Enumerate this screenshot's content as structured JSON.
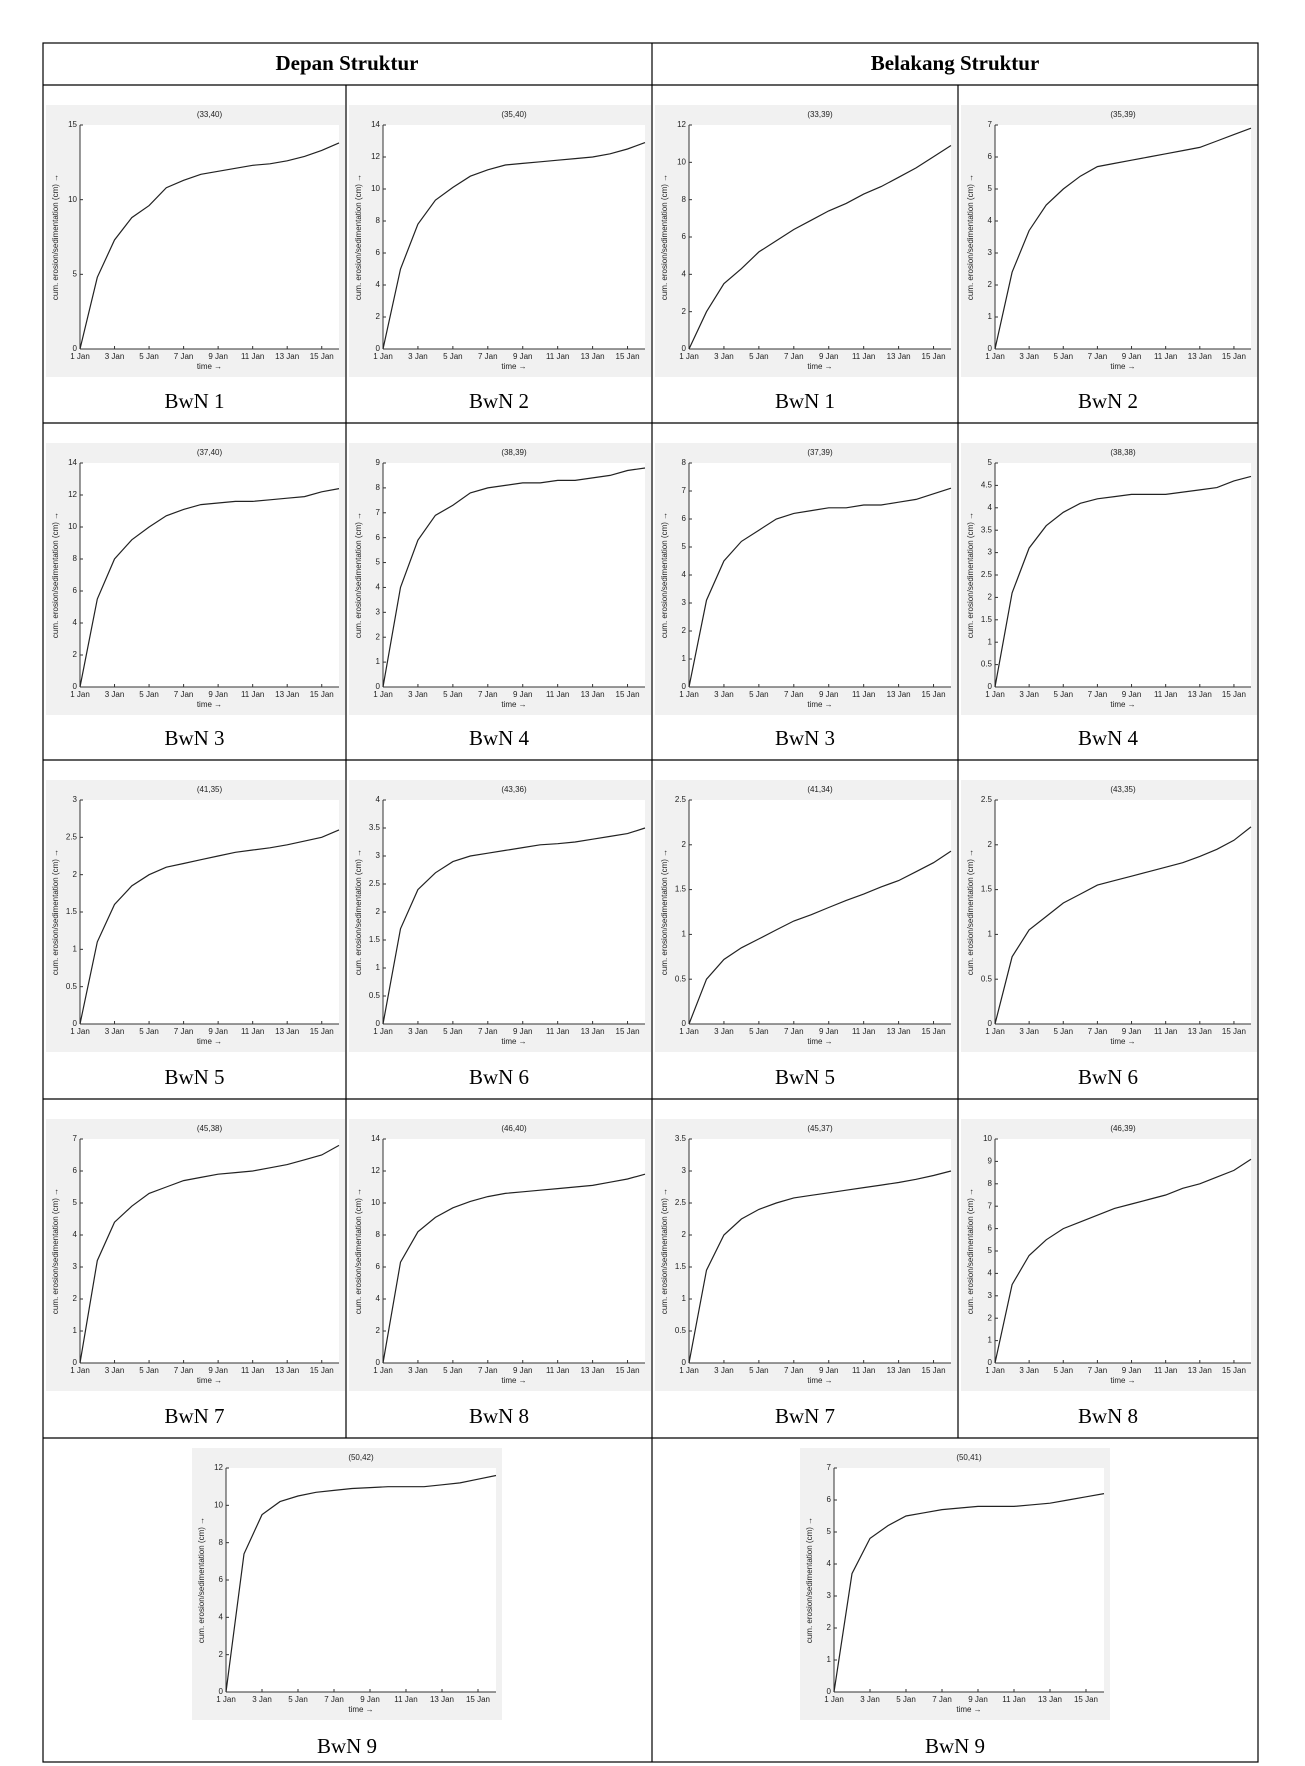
{
  "table": {
    "headers": [
      "Depan Struktur",
      "Belakang Struktur"
    ]
  },
  "chart_data": [
    {
      "type": "line",
      "title": "(33,40)",
      "caption": "BwN 1",
      "xlabel": "time →",
      "ylabel": "cum. erosion/sedimentation (cm) →",
      "x": [
        "1 Jan",
        "2 Jan",
        "3 Jan",
        "4 Jan",
        "5 Jan",
        "6 Jan",
        "7 Jan",
        "8 Jan",
        "9 Jan",
        "10 Jan",
        "11 Jan",
        "12 Jan",
        "13 Jan",
        "14 Jan",
        "15 Jan",
        "16 Jan"
      ],
      "xticks": [
        "1 Jan",
        "3 Jan",
        "5 Jan",
        "7 Jan",
        "9 Jan",
        "11 Jan",
        "13 Jan",
        "15 Jan"
      ],
      "values": [
        0,
        4.8,
        7.3,
        8.8,
        9.6,
        10.8,
        11.3,
        11.7,
        11.9,
        12.1,
        12.3,
        12.4,
        12.6,
        12.9,
        13.3,
        13.8
      ],
      "ylim": [
        0,
        15
      ],
      "yticks": [
        0,
        5,
        10,
        15
      ],
      "color": "#222222"
    },
    {
      "type": "line",
      "title": "(35,40)",
      "caption": "BwN 2",
      "xlabel": "time →",
      "ylabel": "cum. erosion/sedimentation (cm) →",
      "x": [
        "1 Jan",
        "2 Jan",
        "3 Jan",
        "4 Jan",
        "5 Jan",
        "6 Jan",
        "7 Jan",
        "8 Jan",
        "9 Jan",
        "10 Jan",
        "11 Jan",
        "12 Jan",
        "13 Jan",
        "14 Jan",
        "15 Jan",
        "16 Jan"
      ],
      "xticks": [
        "1 Jan",
        "3 Jan",
        "5 Jan",
        "7 Jan",
        "9 Jan",
        "11 Jan",
        "13 Jan",
        "15 Jan"
      ],
      "values": [
        0,
        5,
        7.8,
        9.3,
        10.1,
        10.8,
        11.2,
        11.5,
        11.6,
        11.7,
        11.8,
        11.9,
        12,
        12.2,
        12.5,
        12.9
      ],
      "ylim": [
        0,
        14
      ],
      "yticks": [
        0,
        2,
        4,
        6,
        8,
        10,
        12,
        14
      ],
      "color": "#222222"
    },
    {
      "type": "line",
      "title": "(33,39)",
      "caption": "BwN 1",
      "xlabel": "time →",
      "ylabel": "cum. erosion/sedimentation (cm) →",
      "x": [
        "1 Jan",
        "2 Jan",
        "3 Jan",
        "4 Jan",
        "5 Jan",
        "6 Jan",
        "7 Jan",
        "8 Jan",
        "9 Jan",
        "10 Jan",
        "11 Jan",
        "12 Jan",
        "13 Jan",
        "14 Jan",
        "15 Jan",
        "16 Jan"
      ],
      "xticks": [
        "1 Jan",
        "3 Jan",
        "5 Jan",
        "7 Jan",
        "9 Jan",
        "11 Jan",
        "13 Jan",
        "15 Jan"
      ],
      "values": [
        0,
        2,
        3.5,
        4.3,
        5.2,
        5.8,
        6.4,
        6.9,
        7.4,
        7.8,
        8.3,
        8.7,
        9.2,
        9.7,
        10.3,
        10.9
      ],
      "ylim": [
        0,
        12
      ],
      "yticks": [
        0,
        2,
        4,
        6,
        8,
        10,
        12
      ],
      "color": "#222222"
    },
    {
      "type": "line",
      "title": "(35,39)",
      "caption": "BwN 2",
      "xlabel": "time →",
      "ylabel": "cum. erosion/sedimentation (cm) →",
      "x": [
        "1 Jan",
        "2 Jan",
        "3 Jan",
        "4 Jan",
        "5 Jan",
        "6 Jan",
        "7 Jan",
        "8 Jan",
        "9 Jan",
        "10 Jan",
        "11 Jan",
        "12 Jan",
        "13 Jan",
        "14 Jan",
        "15 Jan",
        "16 Jan"
      ],
      "xticks": [
        "1 Jan",
        "3 Jan",
        "5 Jan",
        "7 Jan",
        "9 Jan",
        "11 Jan",
        "13 Jan",
        "15 Jan"
      ],
      "values": [
        0,
        2.4,
        3.7,
        4.5,
        5,
        5.4,
        5.7,
        5.8,
        5.9,
        6,
        6.1,
        6.2,
        6.3,
        6.5,
        6.7,
        6.9
      ],
      "ylim": [
        0,
        7
      ],
      "yticks": [
        0,
        1,
        2,
        3,
        4,
        5,
        6,
        7
      ],
      "color": "#222222"
    },
    {
      "type": "line",
      "title": "(37,40)",
      "caption": "BwN 3",
      "xlabel": "time →",
      "ylabel": "cum. erosion/sedimentation (cm) →",
      "x": [
        "1 Jan",
        "2 Jan",
        "3 Jan",
        "4 Jan",
        "5 Jan",
        "6 Jan",
        "7 Jan",
        "8 Jan",
        "9 Jan",
        "10 Jan",
        "11 Jan",
        "12 Jan",
        "13 Jan",
        "14 Jan",
        "15 Jan",
        "16 Jan"
      ],
      "xticks": [
        "1 Jan",
        "3 Jan",
        "5 Jan",
        "7 Jan",
        "9 Jan",
        "11 Jan",
        "13 Jan",
        "15 Jan"
      ],
      "values": [
        0,
        5.5,
        8,
        9.2,
        10,
        10.7,
        11.1,
        11.4,
        11.5,
        11.6,
        11.6,
        11.7,
        11.8,
        11.9,
        12.2,
        12.4
      ],
      "ylim": [
        0,
        14
      ],
      "yticks": [
        0,
        2,
        4,
        6,
        8,
        10,
        12,
        14
      ],
      "color": "#222222"
    },
    {
      "type": "line",
      "title": "(38,39)",
      "caption": "BwN 4",
      "xlabel": "time →",
      "ylabel": "cum. erosion/sedimentation (cm) →",
      "x": [
        "1 Jan",
        "2 Jan",
        "3 Jan",
        "4 Jan",
        "5 Jan",
        "6 Jan",
        "7 Jan",
        "8 Jan",
        "9 Jan",
        "10 Jan",
        "11 Jan",
        "12 Jan",
        "13 Jan",
        "14 Jan",
        "15 Jan",
        "16 Jan"
      ],
      "xticks": [
        "1 Jan",
        "3 Jan",
        "5 Jan",
        "7 Jan",
        "9 Jan",
        "11 Jan",
        "13 Jan",
        "15 Jan"
      ],
      "values": [
        0,
        4,
        5.9,
        6.9,
        7.3,
        7.8,
        8,
        8.1,
        8.2,
        8.2,
        8.3,
        8.3,
        8.4,
        8.5,
        8.7,
        8.8
      ],
      "ylim": [
        0,
        9
      ],
      "yticks": [
        0,
        1,
        2,
        3,
        4,
        5,
        6,
        7,
        8,
        9
      ],
      "color": "#222222"
    },
    {
      "type": "line",
      "title": "(37,39)",
      "caption": "BwN 3",
      "xlabel": "time →",
      "ylabel": "cum. erosion/sedimentation (cm) →",
      "x": [
        "1 Jan",
        "2 Jan",
        "3 Jan",
        "4 Jan",
        "5 Jan",
        "6 Jan",
        "7 Jan",
        "8 Jan",
        "9 Jan",
        "10 Jan",
        "11 Jan",
        "12 Jan",
        "13 Jan",
        "14 Jan",
        "15 Jan",
        "16 Jan"
      ],
      "xticks": [
        "1 Jan",
        "3 Jan",
        "5 Jan",
        "7 Jan",
        "9 Jan",
        "11 Jan",
        "13 Jan",
        "15 Jan"
      ],
      "values": [
        0,
        3.1,
        4.5,
        5.2,
        5.6,
        6,
        6.2,
        6.3,
        6.4,
        6.4,
        6.5,
        6.5,
        6.6,
        6.7,
        6.9,
        7.1
      ],
      "ylim": [
        0,
        8
      ],
      "yticks": [
        0,
        1,
        2,
        3,
        4,
        5,
        6,
        7,
        8
      ],
      "color": "#222222"
    },
    {
      "type": "line",
      "title": "(38,38)",
      "caption": "BwN 4",
      "xlabel": "time →",
      "ylabel": "cum. erosion/sedimentation (cm) →",
      "x": [
        "1 Jan",
        "2 Jan",
        "3 Jan",
        "4 Jan",
        "5 Jan",
        "6 Jan",
        "7 Jan",
        "8 Jan",
        "9 Jan",
        "10 Jan",
        "11 Jan",
        "12 Jan",
        "13 Jan",
        "14 Jan",
        "15 Jan",
        "16 Jan"
      ],
      "xticks": [
        "1 Jan",
        "3 Jan",
        "5 Jan",
        "7 Jan",
        "9 Jan",
        "11 Jan",
        "13 Jan",
        "15 Jan"
      ],
      "values": [
        0,
        2.1,
        3.1,
        3.6,
        3.9,
        4.1,
        4.2,
        4.25,
        4.3,
        4.3,
        4.3,
        4.35,
        4.4,
        4.45,
        4.6,
        4.7
      ],
      "ylim": [
        0,
        5
      ],
      "yticks": [
        0,
        0.5,
        1,
        1.5,
        2,
        2.5,
        3,
        3.5,
        4,
        4.5,
        5
      ],
      "color": "#222222"
    },
    {
      "type": "line",
      "title": "(41,35)",
      "caption": "BwN 5",
      "xlabel": "time →",
      "ylabel": "cum. erosion/sedimentation (cm) →",
      "x": [
        "1 Jan",
        "2 Jan",
        "3 Jan",
        "4 Jan",
        "5 Jan",
        "6 Jan",
        "7 Jan",
        "8 Jan",
        "9 Jan",
        "10 Jan",
        "11 Jan",
        "12 Jan",
        "13 Jan",
        "14 Jan",
        "15 Jan",
        "16 Jan"
      ],
      "xticks": [
        "1 Jan",
        "3 Jan",
        "5 Jan",
        "7 Jan",
        "9 Jan",
        "11 Jan",
        "13 Jan",
        "15 Jan"
      ],
      "values": [
        0,
        1.1,
        1.6,
        1.85,
        2,
        2.1,
        2.15,
        2.2,
        2.25,
        2.3,
        2.33,
        2.36,
        2.4,
        2.45,
        2.5,
        2.6
      ],
      "ylim": [
        0,
        3
      ],
      "yticks": [
        0,
        0.5,
        1,
        1.5,
        2,
        2.5,
        3
      ],
      "color": "#222222"
    },
    {
      "type": "line",
      "title": "(43,36)",
      "caption": "BwN 6",
      "xlabel": "time →",
      "ylabel": "cum. erosion/sedimentation (cm) →",
      "x": [
        "1 Jan",
        "2 Jan",
        "3 Jan",
        "4 Jan",
        "5 Jan",
        "6 Jan",
        "7 Jan",
        "8 Jan",
        "9 Jan",
        "10 Jan",
        "11 Jan",
        "12 Jan",
        "13 Jan",
        "14 Jan",
        "15 Jan",
        "16 Jan"
      ],
      "xticks": [
        "1 Jan",
        "3 Jan",
        "5 Jan",
        "7 Jan",
        "9 Jan",
        "11 Jan",
        "13 Jan",
        "15 Jan"
      ],
      "values": [
        0,
        1.7,
        2.4,
        2.7,
        2.9,
        3,
        3.05,
        3.1,
        3.15,
        3.2,
        3.22,
        3.25,
        3.3,
        3.35,
        3.4,
        3.5
      ],
      "ylim": [
        0,
        4
      ],
      "yticks": [
        0,
        0.5,
        1,
        1.5,
        2,
        2.5,
        3,
        3.5,
        4
      ],
      "color": "#222222"
    },
    {
      "type": "line",
      "title": "(41,34)",
      "caption": "BwN 5",
      "xlabel": "time →",
      "ylabel": "cum. erosion/sedimentation (cm) →",
      "x": [
        "1 Jan",
        "2 Jan",
        "3 Jan",
        "4 Jan",
        "5 Jan",
        "6 Jan",
        "7 Jan",
        "8 Jan",
        "9 Jan",
        "10 Jan",
        "11 Jan",
        "12 Jan",
        "13 Jan",
        "14 Jan",
        "15 Jan",
        "16 Jan"
      ],
      "xticks": [
        "1 Jan",
        "3 Jan",
        "5 Jan",
        "7 Jan",
        "9 Jan",
        "11 Jan",
        "13 Jan",
        "15 Jan"
      ],
      "values": [
        0,
        0.5,
        0.72,
        0.85,
        0.95,
        1.05,
        1.15,
        1.22,
        1.3,
        1.38,
        1.45,
        1.53,
        1.6,
        1.7,
        1.8,
        1.93
      ],
      "ylim": [
        0,
        2.5
      ],
      "yticks": [
        0,
        0.5,
        1,
        1.5,
        2,
        2.5
      ],
      "color": "#222222"
    },
    {
      "type": "line",
      "title": "(43,35)",
      "caption": "BwN 6",
      "xlabel": "time →",
      "ylabel": "cum. erosion/sedimentation (cm) →",
      "x": [
        "1 Jan",
        "2 Jan",
        "3 Jan",
        "4 Jan",
        "5 Jan",
        "6 Jan",
        "7 Jan",
        "8 Jan",
        "9 Jan",
        "10 Jan",
        "11 Jan",
        "12 Jan",
        "13 Jan",
        "14 Jan",
        "15 Jan",
        "16 Jan"
      ],
      "xticks": [
        "1 Jan",
        "3 Jan",
        "5 Jan",
        "7 Jan",
        "9 Jan",
        "11 Jan",
        "13 Jan",
        "15 Jan"
      ],
      "values": [
        0,
        0.75,
        1.05,
        1.2,
        1.35,
        1.45,
        1.55,
        1.6,
        1.65,
        1.7,
        1.75,
        1.8,
        1.87,
        1.95,
        2.05,
        2.2
      ],
      "ylim": [
        0,
        2.5
      ],
      "yticks": [
        0,
        0.5,
        1,
        1.5,
        2,
        2.5
      ],
      "color": "#222222"
    },
    {
      "type": "line",
      "title": "(45,38)",
      "caption": "BwN 7",
      "xlabel": "time →",
      "ylabel": "cum. erosion/sedimentation (cm) →",
      "x": [
        "1 Jan",
        "2 Jan",
        "3 Jan",
        "4 Jan",
        "5 Jan",
        "6 Jan",
        "7 Jan",
        "8 Jan",
        "9 Jan",
        "10 Jan",
        "11 Jan",
        "12 Jan",
        "13 Jan",
        "14 Jan",
        "15 Jan",
        "16 Jan"
      ],
      "xticks": [
        "1 Jan",
        "3 Jan",
        "5 Jan",
        "7 Jan",
        "9 Jan",
        "11 Jan",
        "13 Jan",
        "15 Jan"
      ],
      "values": [
        0,
        3.2,
        4.4,
        4.9,
        5.3,
        5.5,
        5.7,
        5.8,
        5.9,
        5.95,
        6,
        6.1,
        6.2,
        6.35,
        6.5,
        6.8
      ],
      "ylim": [
        0,
        7
      ],
      "yticks": [
        0,
        1,
        2,
        3,
        4,
        5,
        6,
        7
      ],
      "color": "#222222"
    },
    {
      "type": "line",
      "title": "(46,40)",
      "caption": "BwN 8",
      "xlabel": "time →",
      "ylabel": "cum. erosion/sedimentation (cm) →",
      "x": [
        "1 Jan",
        "2 Jan",
        "3 Jan",
        "4 Jan",
        "5 Jan",
        "6 Jan",
        "7 Jan",
        "8 Jan",
        "9 Jan",
        "10 Jan",
        "11 Jan",
        "12 Jan",
        "13 Jan",
        "14 Jan",
        "15 Jan",
        "16 Jan"
      ],
      "xticks": [
        "1 Jan",
        "3 Jan",
        "5 Jan",
        "7 Jan",
        "9 Jan",
        "11 Jan",
        "13 Jan",
        "15 Jan"
      ],
      "values": [
        0,
        6.3,
        8.2,
        9.1,
        9.7,
        10.1,
        10.4,
        10.6,
        10.7,
        10.8,
        10.9,
        11,
        11.1,
        11.3,
        11.5,
        11.8
      ],
      "ylim": [
        0,
        14
      ],
      "yticks": [
        0,
        2,
        4,
        6,
        8,
        10,
        12,
        14
      ],
      "color": "#222222"
    },
    {
      "type": "line",
      "title": "(45,37)",
      "caption": "BwN 7",
      "xlabel": "time →",
      "ylabel": "cum. erosion/sedimentation (cm) →",
      "x": [
        "1 Jan",
        "2 Jan",
        "3 Jan",
        "4 Jan",
        "5 Jan",
        "6 Jan",
        "7 Jan",
        "8 Jan",
        "9 Jan",
        "10 Jan",
        "11 Jan",
        "12 Jan",
        "13 Jan",
        "14 Jan",
        "15 Jan",
        "16 Jan"
      ],
      "xticks": [
        "1 Jan",
        "3 Jan",
        "5 Jan",
        "7 Jan",
        "9 Jan",
        "11 Jan",
        "13 Jan",
        "15 Jan"
      ],
      "values": [
        0,
        1.45,
        2,
        2.25,
        2.4,
        2.5,
        2.58,
        2.62,
        2.66,
        2.7,
        2.74,
        2.78,
        2.82,
        2.87,
        2.93,
        3
      ],
      "ylim": [
        0,
        3.5
      ],
      "yticks": [
        0,
        0.5,
        1,
        1.5,
        2,
        2.5,
        3,
        3.5
      ],
      "color": "#222222"
    },
    {
      "type": "line",
      "title": "(46,39)",
      "caption": "BwN 8",
      "xlabel": "time →",
      "ylabel": "cum. erosion/sedimentation (cm) →",
      "x": [
        "1 Jan",
        "2 Jan",
        "3 Jan",
        "4 Jan",
        "5 Jan",
        "6 Jan",
        "7 Jan",
        "8 Jan",
        "9 Jan",
        "10 Jan",
        "11 Jan",
        "12 Jan",
        "13 Jan",
        "14 Jan",
        "15 Jan",
        "16 Jan"
      ],
      "xticks": [
        "1 Jan",
        "3 Jan",
        "5 Jan",
        "7 Jan",
        "9 Jan",
        "11 Jan",
        "13 Jan",
        "15 Jan"
      ],
      "values": [
        0,
        3.5,
        4.8,
        5.5,
        6,
        6.3,
        6.6,
        6.9,
        7.1,
        7.3,
        7.5,
        7.8,
        8,
        8.3,
        8.6,
        9.1
      ],
      "ylim": [
        0,
        10
      ],
      "yticks": [
        0,
        1,
        2,
        3,
        4,
        5,
        6,
        7,
        8,
        9,
        10
      ],
      "color": "#222222"
    },
    {
      "type": "line",
      "title": "(50,42)",
      "caption": "BwN 9",
      "xlabel": "time →",
      "ylabel": "cum. erosion/sedimentation (cm) →",
      "x": [
        "1 Jan",
        "2 Jan",
        "3 Jan",
        "4 Jan",
        "5 Jan",
        "6 Jan",
        "7 Jan",
        "8 Jan",
        "9 Jan",
        "10 Jan",
        "11 Jan",
        "12 Jan",
        "13 Jan",
        "14 Jan",
        "15 Jan",
        "16 Jan"
      ],
      "xticks": [
        "1 Jan",
        "3 Jan",
        "5 Jan",
        "7 Jan",
        "9 Jan",
        "11 Jan",
        "13 Jan",
        "15 Jan"
      ],
      "values": [
        0,
        7.4,
        9.5,
        10.2,
        10.5,
        10.7,
        10.8,
        10.9,
        10.95,
        11,
        11,
        11,
        11.1,
        11.2,
        11.4,
        11.6
      ],
      "ylim": [
        0,
        12
      ],
      "yticks": [
        0,
        2,
        4,
        6,
        8,
        10,
        12
      ],
      "color": "#222222"
    },
    {
      "type": "line",
      "title": "(50,41)",
      "caption": "BwN 9",
      "xlabel": "time →",
      "ylabel": "cum. erosion/sedimentation (cm) →",
      "x": [
        "1 Jan",
        "2 Jan",
        "3 Jan",
        "4 Jan",
        "5 Jan",
        "6 Jan",
        "7 Jan",
        "8 Jan",
        "9 Jan",
        "10 Jan",
        "11 Jan",
        "12 Jan",
        "13 Jan",
        "14 Jan",
        "15 Jan",
        "16 Jan"
      ],
      "xticks": [
        "1 Jan",
        "3 Jan",
        "5 Jan",
        "7 Jan",
        "9 Jan",
        "11 Jan",
        "13 Jan",
        "15 Jan"
      ],
      "values": [
        0,
        3.7,
        4.8,
        5.2,
        5.5,
        5.6,
        5.7,
        5.75,
        5.8,
        5.8,
        5.8,
        5.85,
        5.9,
        6,
        6.1,
        6.2
      ],
      "ylim": [
        0,
        7
      ],
      "yticks": [
        0,
        1,
        2,
        3,
        4,
        5,
        6,
        7
      ],
      "color": "#222222"
    }
  ]
}
